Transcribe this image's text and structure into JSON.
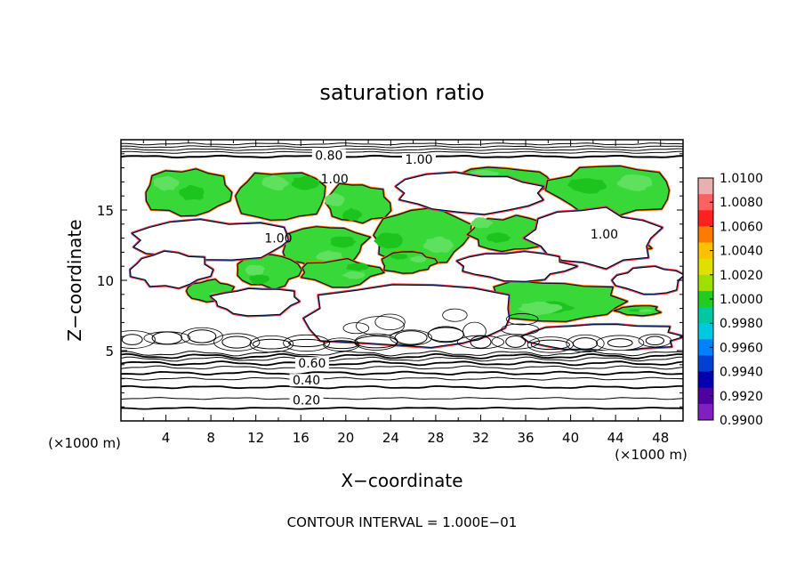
{
  "chart_data": {
    "type": "heatmap",
    "title": "saturation ratio",
    "xlabel": "X−coordinate",
    "ylabel": "Z−coordinate",
    "x_unit": "(×1000 m)",
    "y_unit": "(×1000 m)",
    "xlim": [
      0,
      50
    ],
    "ylim": [
      0,
      20
    ],
    "xticks": [
      "4",
      "8",
      "12",
      "16",
      "20",
      "24",
      "28",
      "32",
      "36",
      "40",
      "44",
      "48"
    ],
    "xtick_values": [
      4,
      8,
      12,
      16,
      20,
      24,
      28,
      32,
      36,
      40,
      44,
      48
    ],
    "yticks": [
      "5",
      "10",
      "15"
    ],
    "ytick_values": [
      5,
      10,
      15
    ],
    "colorbar": {
      "labels": [
        "1.0100",
        "1.0080",
        "1.0060",
        "1.0040",
        "1.0020",
        "1.0000",
        "0.9980",
        "0.9960",
        "0.9940",
        "0.9920",
        "0.9900"
      ],
      "values": [
        1.01,
        1.008,
        1.006,
        1.004,
        1.002,
        1.0,
        0.998,
        0.996,
        0.994,
        0.992,
        0.99
      ],
      "colors": [
        "#e8b0b0",
        "#ff6060",
        "#ff2020",
        "#ff7a00",
        "#ffc000",
        "#e0e000",
        "#a0e000",
        "#22cc22",
        "#00c8a0",
        "#00c8e0",
        "#0080ff",
        "#0040d0",
        "#0000b0",
        "#5000a0",
        "#8020c0"
      ]
    },
    "contour_labels": [
      {
        "text": "0.80",
        "x": 18.5,
        "y": 18.9
      },
      {
        "text": "1.00",
        "x": 26.5,
        "y": 18.6
      },
      {
        "text": "1.00",
        "x": 19.0,
        "y": 17.2
      },
      {
        "text": "1.00",
        "x": 43.0,
        "y": 13.3
      },
      {
        "text": "1.00",
        "x": 14.0,
        "y": 13.0
      },
      {
        "text": "0.60",
        "x": 17.0,
        "y": 4.1
      },
      {
        "text": "0.40",
        "x": 16.5,
        "y": 2.9
      },
      {
        "text": "0.20",
        "x": 16.5,
        "y": 1.5
      }
    ],
    "horizontal_contour_levels_z": [
      0.9,
      1.6,
      2.4,
      3.0,
      3.4,
      3.8,
      4.1,
      4.4,
      4.6,
      4.8
    ],
    "upper_contour_levels_z": [
      18.8,
      19.1,
      19.3,
      19.5,
      19.7
    ],
    "green_regions": [
      {
        "x": [
          2,
          10
        ],
        "y": [
          14.5,
          18
        ]
      },
      {
        "x": [
          10,
          18
        ],
        "y": [
          14.2,
          17.8
        ]
      },
      {
        "x": [
          18,
          24
        ],
        "y": [
          14.0,
          17.0
        ]
      },
      {
        "x": [
          29,
          38
        ],
        "y": [
          16.0,
          18.0
        ]
      },
      {
        "x": [
          38,
          49
        ],
        "y": [
          14.5,
          18.3
        ]
      },
      {
        "x": [
          14,
          22
        ],
        "y": [
          11.0,
          14.0
        ]
      },
      {
        "x": [
          22,
          31
        ],
        "y": [
          11.2,
          15.2
        ]
      },
      {
        "x": [
          31,
          38
        ],
        "y": [
          12.0,
          14.5
        ]
      },
      {
        "x": [
          38,
          47
        ],
        "y": [
          11.5,
          14.0
        ]
      },
      {
        "x": [
          10,
          16
        ],
        "y": [
          9.5,
          12.0
        ]
      },
      {
        "x": [
          16,
          23
        ],
        "y": [
          9.6,
          11.5
        ]
      },
      {
        "x": [
          23,
          28
        ],
        "y": [
          10.5,
          12.0
        ]
      },
      {
        "x": [
          32,
          45
        ],
        "y": [
          7.0,
          10.0
        ]
      },
      {
        "x": [
          44,
          48
        ],
        "y": [
          7.5,
          8.2
        ]
      },
      {
        "x": [
          6,
          10
        ],
        "y": [
          8.5,
          10.0
        ]
      }
    ],
    "white_regions": [
      {
        "x": [
          1,
          16
        ],
        "y": [
          11.5,
          14.2
        ]
      },
      {
        "x": [
          24,
          38
        ],
        "y": [
          14.8,
          17.6
        ]
      },
      {
        "x": [
          36,
          48
        ],
        "y": [
          11.0,
          15.0
        ]
      },
      {
        "x": [
          30,
          40
        ],
        "y": [
          10.0,
          12.0
        ]
      },
      {
        "x": [
          1,
          8
        ],
        "y": [
          9.5,
          12.0
        ]
      },
      {
        "x": [
          8,
          16
        ],
        "y": [
          7.5,
          9.5
        ]
      },
      {
        "x": [
          16,
          36
        ],
        "y": [
          5.0,
          9.6
        ]
      },
      {
        "x": [
          36,
          50
        ],
        "y": [
          5.0,
          7.0
        ]
      },
      {
        "x": [
          44,
          50
        ],
        "y": [
          9.0,
          11.0
        ]
      },
      {
        "x": [
          0,
          50
        ],
        "y": [
          18.3,
          20.0
        ]
      },
      {
        "x": [
          0,
          50
        ],
        "y": [
          0,
          5.0
        ]
      }
    ]
  },
  "footer": "CONTOUR INTERVAL = 1.000E−01"
}
